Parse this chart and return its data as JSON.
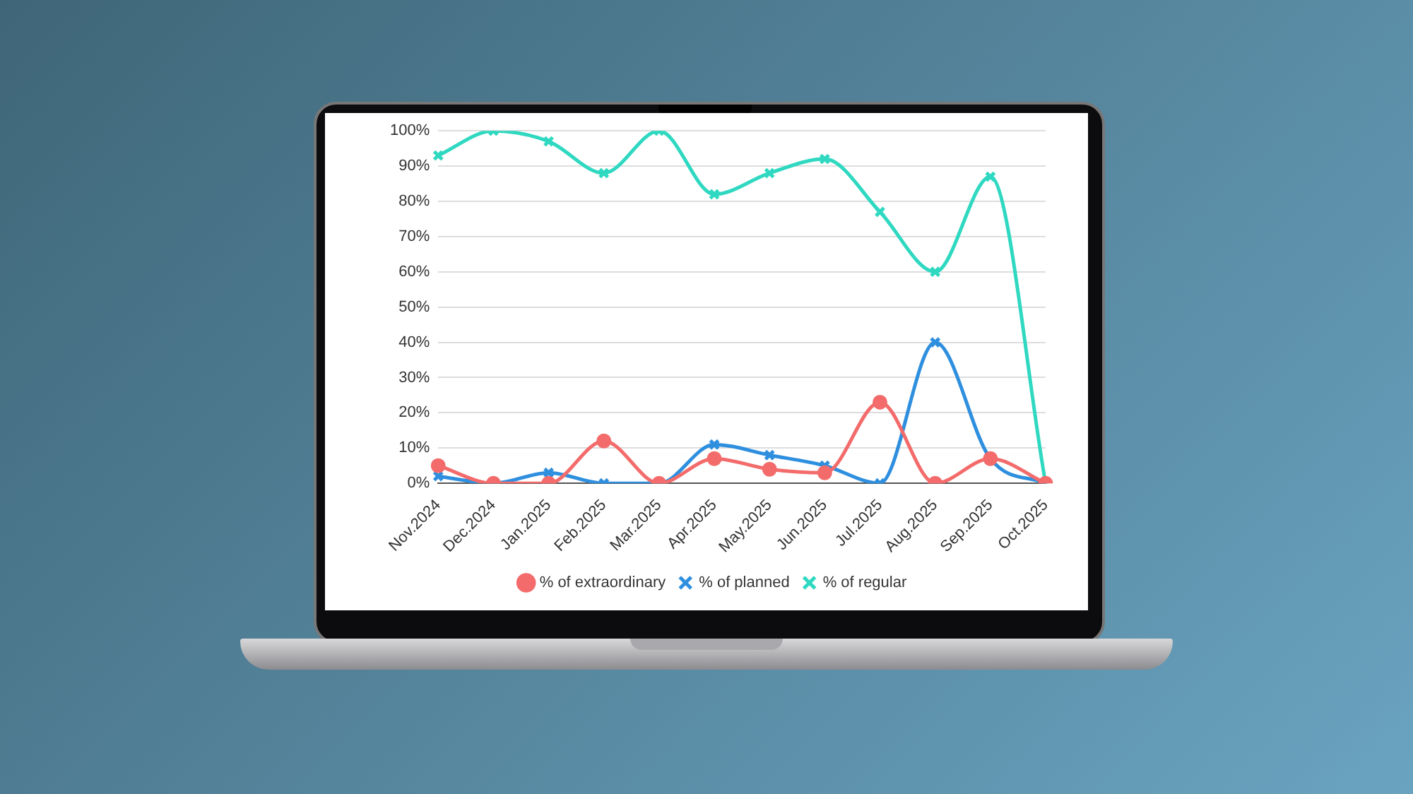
{
  "chart_data": {
    "type": "line",
    "categories": [
      "Nov.2024",
      "Dec.2024",
      "Jan.2025",
      "Feb.2025",
      "Mar.2025",
      "Apr.2025",
      "May.2025",
      "Jun.2025",
      "Jul.2025",
      "Aug.2025",
      "Sep.2025",
      "Oct.2025"
    ],
    "series": [
      {
        "name": "% of extraordinary",
        "color": "#f36b6b",
        "marker": "circle",
        "values": [
          5,
          0,
          0,
          12,
          0,
          7,
          4,
          3,
          23,
          0,
          7,
          0
        ]
      },
      {
        "name": "% of planned",
        "color": "#2f8fdf",
        "marker": "cross",
        "values": [
          2,
          0,
          3,
          0,
          0,
          11,
          8,
          5,
          0,
          40,
          7,
          0
        ]
      },
      {
        "name": "% of regular",
        "color": "#2fd8c0",
        "marker": "cross",
        "values": [
          93,
          100,
          97,
          88,
          100,
          82,
          88,
          92,
          77,
          60,
          87,
          0
        ]
      }
    ],
    "ylim": [
      0,
      100
    ],
    "yticks": [
      {
        "value": 0,
        "label": "0%"
      },
      {
        "value": 10,
        "label": "10%"
      },
      {
        "value": 20,
        "label": "20%"
      },
      {
        "value": 30,
        "label": "30%"
      },
      {
        "value": 40,
        "label": "40%"
      },
      {
        "value": 50,
        "label": "50%"
      },
      {
        "value": 60,
        "label": "60%"
      },
      {
        "value": 70,
        "label": "70%"
      },
      {
        "value": 80,
        "label": "80%"
      },
      {
        "value": 90,
        "label": "90%"
      },
      {
        "value": 100,
        "label": "100%"
      }
    ],
    "grid": "y",
    "legend": "bottom"
  }
}
